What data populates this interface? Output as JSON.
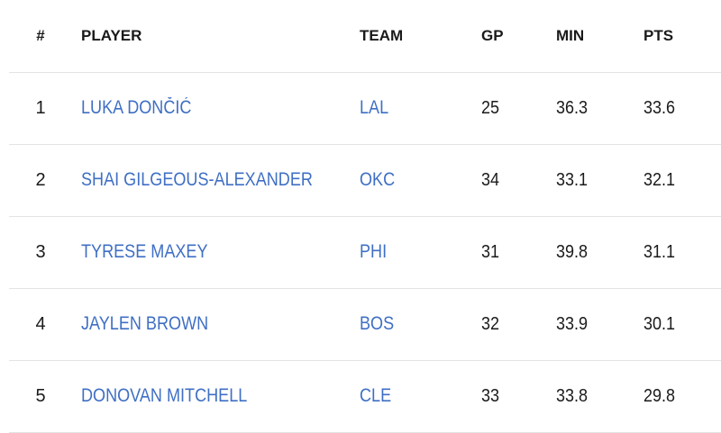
{
  "table": {
    "headers": {
      "rank": "#",
      "player": "PLAYER",
      "team": "TEAM",
      "gp": "GP",
      "min": "MIN",
      "pts": "PTS"
    },
    "rows": [
      {
        "rank": "1",
        "player": "LUKA DONČIĆ",
        "team": "LAL",
        "gp": "25",
        "min": "36.3",
        "pts": "33.6"
      },
      {
        "rank": "2",
        "player": "SHAI GILGEOUS-ALEXANDER",
        "team": "OKC",
        "gp": "34",
        "min": "33.1",
        "pts": "32.1"
      },
      {
        "rank": "3",
        "player": "TYRESE MAXEY",
        "team": "PHI",
        "gp": "31",
        "min": "39.8",
        "pts": "31.1"
      },
      {
        "rank": "4",
        "player": "JAYLEN BROWN",
        "team": "BOS",
        "gp": "32",
        "min": "33.9",
        "pts": "30.1"
      },
      {
        "rank": "5",
        "player": "DONOVAN MITCHELL",
        "team": "CLE",
        "gp": "33",
        "min": "33.8",
        "pts": "29.8"
      }
    ]
  },
  "colors": {
    "link": "#3f6fc4",
    "text": "#1a1a1a",
    "divider": "#e3e3e3"
  }
}
